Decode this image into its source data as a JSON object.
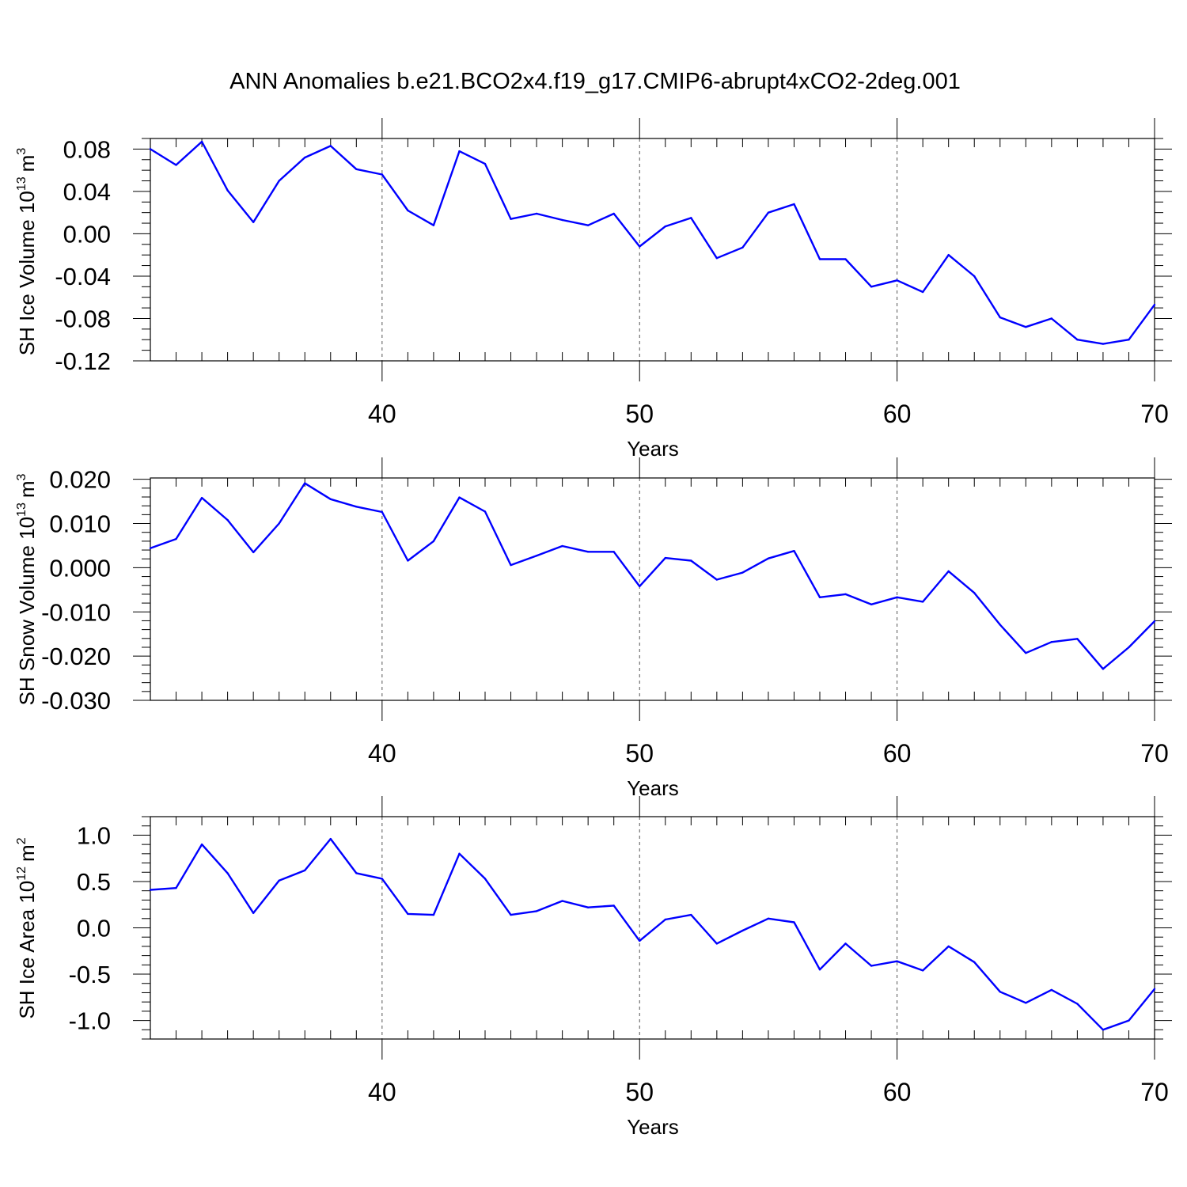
{
  "title": "ANN Anomalies b.e21.BCO2x4.f19_g17.CMIP6-abrupt4xCO2-2deg.001",
  "colors": {
    "series": "#0000ff",
    "axis": "#000000",
    "grid": "#555555"
  },
  "chart_data": [
    {
      "type": "line",
      "ylabel": "SH Ice Volume 10",
      "ylabel_exp": "13",
      "ylabel_unit": "m",
      "ylabel_unit_exp": "3",
      "xlabel": "Years",
      "xlim": [
        31,
        70
      ],
      "ylim": [
        -0.12,
        0.09
      ],
      "xticks": [
        40,
        50,
        60,
        70
      ],
      "xtick_labels": [
        "40",
        "50",
        "60",
        "70"
      ],
      "yticks": [
        0.08,
        0.04,
        0.0,
        -0.04,
        -0.08,
        -0.12
      ],
      "ytick_labels": [
        "0.08",
        "0.04",
        "0.00",
        "-0.04",
        "-0.08",
        "-0.12"
      ],
      "y_minor_step": 0.01,
      "grid_x": [
        40,
        50,
        60
      ],
      "x": [
        31,
        32,
        33,
        34,
        35,
        36,
        37,
        38,
        39,
        40,
        41,
        42,
        43,
        44,
        45,
        46,
        47,
        48,
        49,
        50,
        51,
        52,
        53,
        54,
        55,
        56,
        57,
        58,
        59,
        60,
        61,
        62,
        63,
        64,
        65,
        66,
        67,
        68,
        69,
        70
      ],
      "values": [
        0.08,
        0.065,
        0.087,
        0.041,
        0.011,
        0.05,
        0.072,
        0.083,
        0.061,
        0.056,
        0.022,
        0.008,
        0.078,
        0.066,
        0.014,
        0.019,
        0.013,
        0.008,
        0.019,
        -0.012,
        0.007,
        0.015,
        -0.023,
        -0.013,
        0.02,
        0.028,
        -0.024,
        -0.024,
        -0.05,
        -0.044,
        -0.055,
        -0.02,
        -0.04,
        -0.079,
        -0.088,
        -0.08,
        -0.1,
        -0.104,
        -0.1,
        -0.067
      ]
    },
    {
      "type": "line",
      "ylabel": "SH Snow Volume 10",
      "ylabel_exp": "13",
      "ylabel_unit": "m",
      "ylabel_unit_exp": "3",
      "xlabel": "Years",
      "xlim": [
        31,
        70
      ],
      "ylim": [
        -0.03,
        0.0203
      ],
      "xticks": [
        40,
        50,
        60,
        70
      ],
      "xtick_labels": [
        "40",
        "50",
        "60",
        "70"
      ],
      "yticks": [
        0.02,
        0.01,
        0.0,
        -0.01,
        -0.02,
        -0.03
      ],
      "ytick_labels": [
        "0.020",
        "0.010",
        "0.000",
        "-0.010",
        "-0.020",
        "-0.030"
      ],
      "y_minor_step": 0.002,
      "grid_x": [
        40,
        50,
        60
      ],
      "x": [
        31,
        32,
        33,
        34,
        35,
        36,
        37,
        38,
        39,
        40,
        41,
        42,
        43,
        44,
        45,
        46,
        47,
        48,
        49,
        50,
        51,
        52,
        53,
        54,
        55,
        56,
        57,
        58,
        59,
        60,
        61,
        62,
        63,
        64,
        65,
        66,
        67,
        68,
        69,
        70
      ],
      "values": [
        0.0044,
        0.0065,
        0.0158,
        0.0108,
        0.0035,
        0.01,
        0.0191,
        0.0155,
        0.0138,
        0.0126,
        0.0016,
        0.006,
        0.0159,
        0.0127,
        0.0006,
        0.0027,
        0.0049,
        0.0036,
        0.0036,
        -0.0042,
        0.0022,
        0.0016,
        -0.0027,
        -0.0011,
        0.0021,
        0.0038,
        -0.0067,
        -0.006,
        -0.0083,
        -0.0067,
        -0.0077,
        -0.0008,
        -0.0057,
        -0.0129,
        -0.0193,
        -0.0168,
        -0.0161,
        -0.0229,
        -0.018,
        -0.0121
      ]
    },
    {
      "type": "line",
      "ylabel": "SH Ice Area 10",
      "ylabel_exp": "12",
      "ylabel_unit": "m",
      "ylabel_unit_exp": "2",
      "xlabel": "Years",
      "xlim": [
        31,
        70
      ],
      "ylim": [
        -1.2,
        1.2
      ],
      "xticks": [
        40,
        50,
        60,
        70
      ],
      "xtick_labels": [
        "40",
        "50",
        "60",
        "70"
      ],
      "yticks": [
        1.0,
        0.5,
        0.0,
        -0.5,
        -1.0
      ],
      "ytick_labels": [
        "1.0",
        "0.5",
        "0.0",
        "-0.5",
        "-1.0"
      ],
      "y_minor_step": 0.1,
      "grid_x": [
        40,
        50,
        60
      ],
      "x": [
        31,
        32,
        33,
        34,
        35,
        36,
        37,
        38,
        39,
        40,
        41,
        42,
        43,
        44,
        45,
        46,
        47,
        48,
        49,
        50,
        51,
        52,
        53,
        54,
        55,
        56,
        57,
        58,
        59,
        60,
        61,
        62,
        63,
        64,
        65,
        66,
        67,
        68,
        69,
        70
      ],
      "values": [
        0.41,
        0.43,
        0.9,
        0.59,
        0.16,
        0.51,
        0.62,
        0.96,
        0.59,
        0.53,
        0.15,
        0.14,
        0.8,
        0.53,
        0.14,
        0.18,
        0.29,
        0.22,
        0.24,
        -0.14,
        0.09,
        0.14,
        -0.17,
        -0.03,
        0.1,
        0.06,
        -0.45,
        -0.17,
        -0.41,
        -0.36,
        -0.46,
        -0.2,
        -0.37,
        -0.69,
        -0.81,
        -0.67,
        -0.82,
        -1.1,
        -1.0,
        -0.66
      ]
    }
  ]
}
